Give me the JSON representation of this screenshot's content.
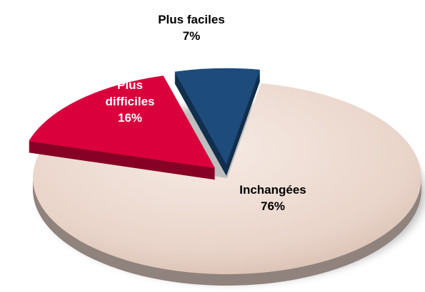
{
  "chart_data": {
    "type": "pie",
    "categories": [
      "Inchangées",
      "Plus difficiles",
      "Plus faciles"
    ],
    "values": [
      76,
      16,
      7
    ],
    "value_labels": [
      "76%",
      "16%",
      "7%"
    ],
    "colors": [
      "#e9d4c9",
      "#d9003b",
      "#1d4b7c"
    ]
  }
}
